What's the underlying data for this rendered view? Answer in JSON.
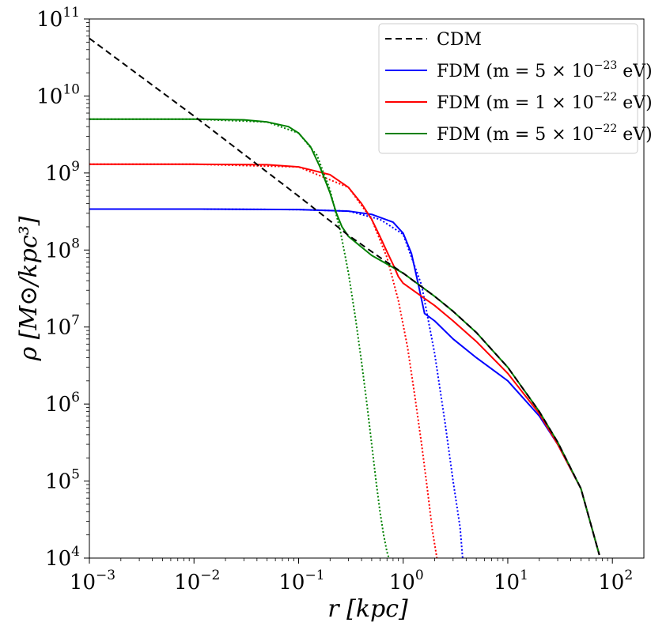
{
  "chart_data": {
    "type": "line",
    "xlabel": "r [kpc]",
    "ylabel": "ρ [M⊙/kpc³]",
    "x_scale": "log",
    "y_scale": "log",
    "xlim": [
      0.001,
      200
    ],
    "ylim": [
      10000,
      100000000000
    ],
    "grid": false,
    "legend_position": "top-right",
    "x_ticks": [
      {
        "base": "10",
        "exp": "−3",
        "value": 0.001
      },
      {
        "base": "10",
        "exp": "−2",
        "value": 0.01
      },
      {
        "base": "10",
        "exp": "−1",
        "value": 0.1
      },
      {
        "base": "10",
        "exp": "0",
        "value": 1
      },
      {
        "base": "10",
        "exp": "1",
        "value": 10
      },
      {
        "base": "10",
        "exp": "2",
        "value": 100
      }
    ],
    "y_ticks": [
      {
        "base": "10",
        "exp": "4",
        "value": 10000
      },
      {
        "base": "10",
        "exp": "5",
        "value": 100000
      },
      {
        "base": "10",
        "exp": "6",
        "value": 1000000
      },
      {
        "base": "10",
        "exp": "7",
        "value": 10000000
      },
      {
        "base": "10",
        "exp": "8",
        "value": 100000000
      },
      {
        "base": "10",
        "exp": "9",
        "value": 1000000000
      },
      {
        "base": "10",
        "exp": "10",
        "value": 10000000000
      },
      {
        "base": "10",
        "exp": "11",
        "value": 100000000000
      }
    ],
    "series": [
      {
        "name": "CDM",
        "color": "#000000",
        "dash": "dashed",
        "x": [
          0.001,
          0.003,
          0.01,
          0.03,
          0.1,
          0.3,
          0.6,
          1,
          2,
          3,
          5,
          10,
          20,
          30,
          50,
          75
        ],
        "y": [
          56000000000.0,
          18500000000.0,
          5500000000.0,
          1750000000.0,
          500000000.0,
          155000000.0,
          80000000.0,
          50000000.0,
          25000000.0,
          16000000.0,
          8500000.0,
          3000000.0,
          800000.0,
          320000.0,
          80000.0,
          11000.0
        ]
      },
      {
        "name": "FDM (m = 5×10⁻²³ eV)",
        "color": "#0000ff",
        "dash": "solid",
        "x": [
          0.001,
          0.01,
          0.1,
          0.3,
          0.5,
          0.8,
          1.0,
          1.2,
          1.4,
          1.6,
          2,
          3,
          5,
          10,
          20,
          30,
          50,
          75
        ],
        "y": [
          340000000.0,
          340000000.0,
          335000000.0,
          320000000.0,
          290000000.0,
          230000000.0,
          165000000.0,
          90000000.0,
          35000000.0,
          15000000.0,
          12000000.0,
          7000000.0,
          4000000.0,
          2000000.0,
          700000.0,
          300000.0,
          80000.0,
          11000.0
        ]
      },
      {
        "name": "FDM (m = 1×10⁻²² eV)",
        "color": "#ff0000",
        "dash": "solid",
        "x": [
          0.001,
          0.01,
          0.05,
          0.1,
          0.2,
          0.3,
          0.4,
          0.5,
          0.6,
          0.7,
          0.8,
          0.9,
          1.0,
          1.5,
          2,
          3,
          5,
          10,
          20,
          30,
          50,
          75
        ],
        "y": [
          1300000000.0,
          1300000000.0,
          1280000000.0,
          1200000000.0,
          950000000.0,
          650000000.0,
          400000000.0,
          250000000.0,
          150000000.0,
          95000000.0,
          65000000.0,
          45000000.0,
          37000000.0,
          25000000.0,
          19000000.0,
          12000000.0,
          6500000.0,
          2500000.0,
          750000.0,
          300000.0,
          80000.0,
          11000.0
        ]
      },
      {
        "name": "FDM (m = 5×10⁻²² eV)",
        "color": "#008000",
        "dash": "solid",
        "x": [
          0.001,
          0.01,
          0.03,
          0.05,
          0.08,
          0.1,
          0.13,
          0.16,
          0.2,
          0.23,
          0.26,
          0.3,
          0.5,
          1,
          2,
          3,
          5,
          10,
          20,
          30,
          50,
          75
        ],
        "y": [
          5000000000.0,
          5000000000.0,
          4900000000.0,
          4600000000.0,
          4000000000.0,
          3300000000.0,
          2200000000.0,
          1200000000.0,
          550000000.0,
          300000000.0,
          200000000.0,
          150000000.0,
          85000000.0,
          50000000.0,
          25000000.0,
          16000000.0,
          8500000.0,
          3000000.0,
          800000.0,
          320000.0,
          80000.0,
          11000.0
        ]
      },
      {
        "name": "",
        "color": "#0000ff",
        "dash": "dotted",
        "x": [
          0.001,
          0.01,
          0.1,
          0.3,
          0.6,
          1.0,
          1.5,
          2.0,
          2.5,
          3.0,
          3.5,
          3.7
        ],
        "y": [
          340000000.0,
          340000000.0,
          335000000.0,
          320000000.0,
          250000000.0,
          160000000.0,
          35000000.0,
          4500000.0,
          600000.0,
          100000.0,
          25000.0,
          10000.0
        ]
      },
      {
        "name": "",
        "color": "#ff0000",
        "dash": "dotted",
        "x": [
          0.001,
          0.01,
          0.1,
          0.3,
          0.5,
          0.7,
          0.9,
          1.1,
          1.3,
          1.5,
          1.7,
          1.9,
          2.1
        ],
        "y": [
          1300000000.0,
          1300000000.0,
          1200000000.0,
          650000000.0,
          250000000.0,
          80000000.0,
          22000000.0,
          5500000.0,
          1200000.0,
          300000.0,
          80000.0,
          23000.0,
          10000.0
        ]
      },
      {
        "name": "",
        "color": "#008000",
        "dash": "dotted",
        "x": [
          0.001,
          0.01,
          0.05,
          0.1,
          0.15,
          0.2,
          0.25,
          0.3,
          0.35,
          0.4,
          0.45,
          0.5,
          0.55,
          0.6,
          0.65,
          0.7,
          0.73
        ],
        "y": [
          5000000000.0,
          5000000000.0,
          4600000000.0,
          3300000000.0,
          1700000000.0,
          600000000.0,
          180000000.0,
          50000000.0,
          13000000.0,
          3500000.0,
          1000000.0,
          300000.0,
          100000.0,
          40000.0,
          20000.0,
          12000.0,
          10000.0
        ]
      }
    ],
    "legend": [
      {
        "label": "CDM",
        "color": "#000000",
        "dash": "dashed",
        "prefix": "",
        "base": "",
        "exp": "",
        "suffix": ""
      },
      {
        "label": "FDM (m = 5×10⁻²³ eV)",
        "color": "#0000ff",
        "dash": "solid",
        "prefix": "FDM (m = 5 × ",
        "base": "10",
        "exp": "−23",
        "suffix": " eV)"
      },
      {
        "label": "FDM (m = 1×10⁻²² eV)",
        "color": "#ff0000",
        "dash": "solid",
        "prefix": "FDM (m = 1 × ",
        "base": "10",
        "exp": "−22",
        "suffix": " eV)"
      },
      {
        "label": "FDM (m = 5×10⁻²² eV)",
        "color": "#008000",
        "dash": "solid",
        "prefix": "FDM (m = 5 × ",
        "base": "10",
        "exp": "−22",
        "suffix": " eV)"
      }
    ]
  }
}
